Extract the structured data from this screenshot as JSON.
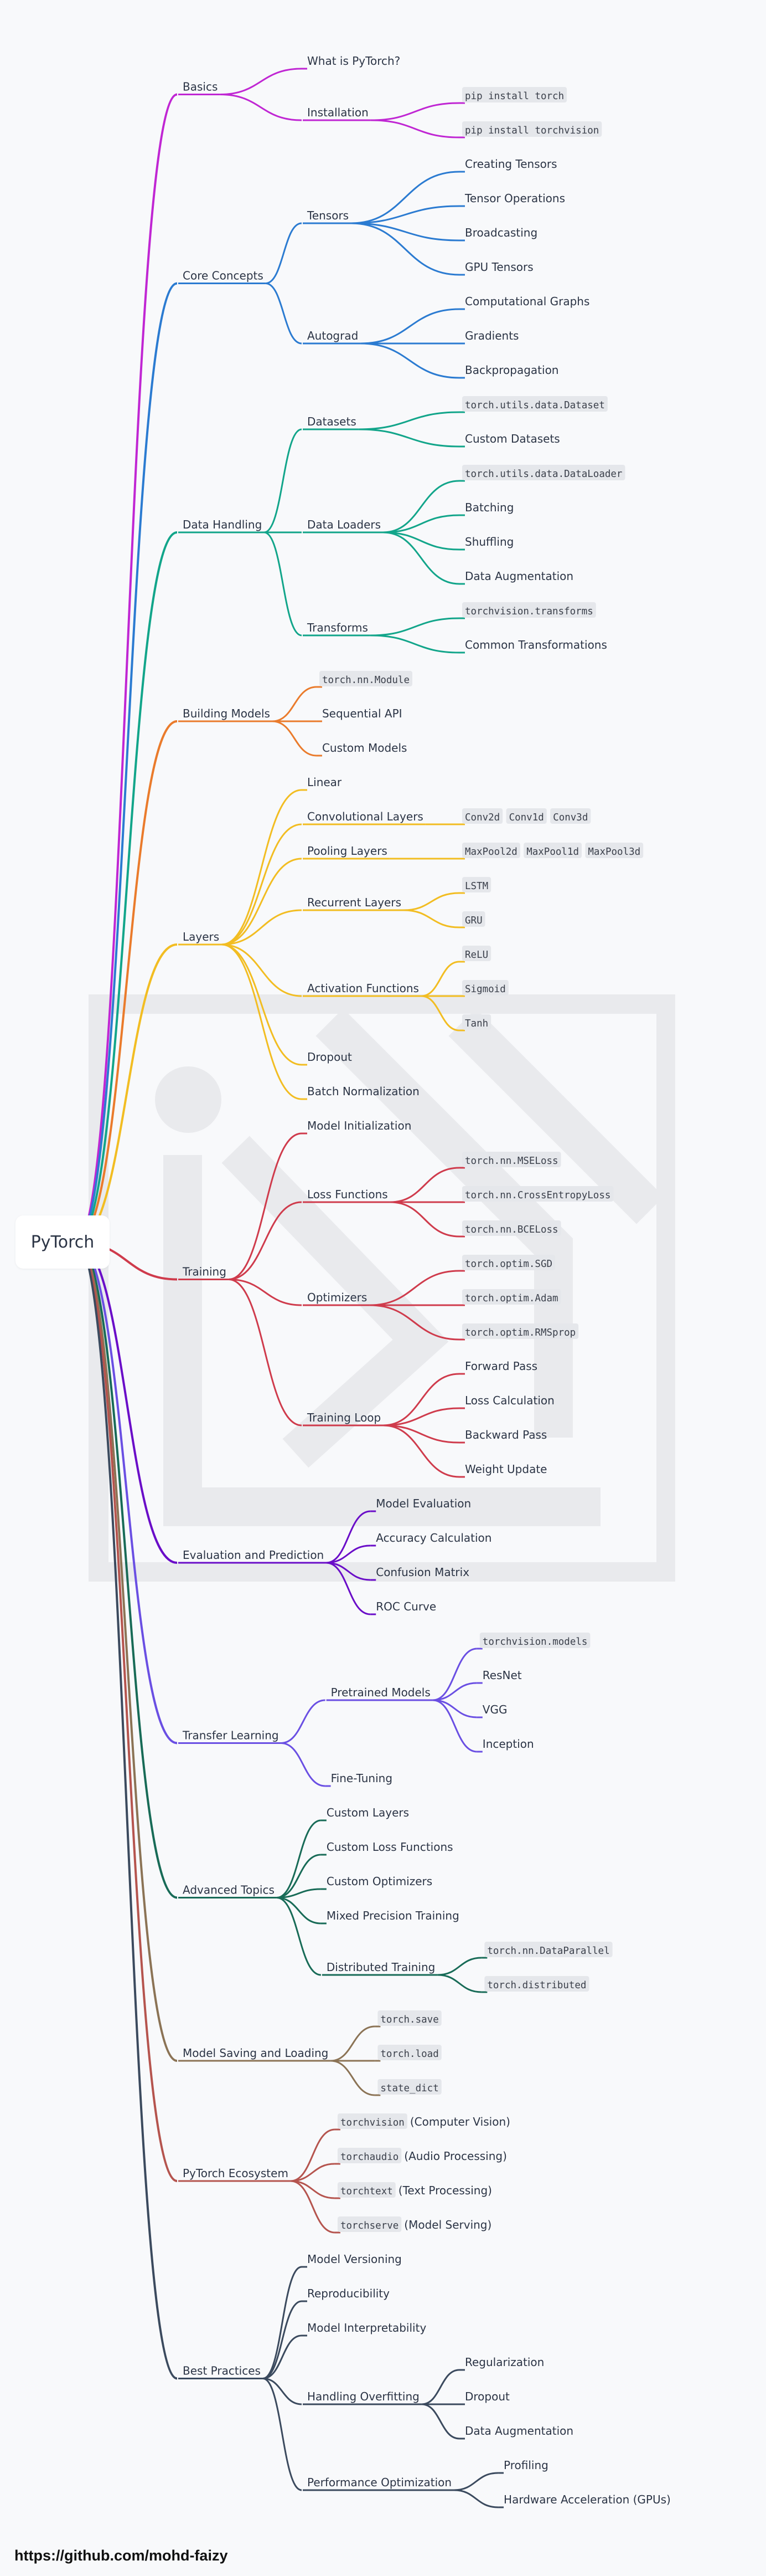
{
  "root": "PyTorch",
  "footer": "https://github.com/mohd-faizy",
  "colors": {
    "basics": "#c026d3",
    "core": "#2b7bd1",
    "data": "#12a58a",
    "building": "#ea7b2c",
    "layers": "#f2bd22",
    "training": "#cf3b4c",
    "eval": "#6a0dc8",
    "transfer": "#6a4fe3",
    "advanced": "#186b57",
    "saving": "#8b7355",
    "ecosystem": "#b5544e",
    "best": "#3b4a5e",
    "watermark": "#e9eaed"
  },
  "tree": [
    {
      "label": "Basics",
      "color": "basics",
      "children": [
        {
          "label": "What is PyTorch?"
        },
        {
          "label": "Installation",
          "children": [
            {
              "label": "pip install torch",
              "code": true
            },
            {
              "label": "pip install torchvision",
              "code": true
            }
          ]
        }
      ]
    },
    {
      "label": "Core Concepts",
      "color": "core",
      "children": [
        {
          "label": "Tensors",
          "children": [
            {
              "label": "Creating Tensors"
            },
            {
              "label": "Tensor Operations"
            },
            {
              "label": "Broadcasting"
            },
            {
              "label": "GPU Tensors"
            }
          ]
        },
        {
          "label": "Autograd",
          "children": [
            {
              "label": "Computational Graphs"
            },
            {
              "label": "Gradients"
            },
            {
              "label": "Backpropagation"
            }
          ]
        }
      ]
    },
    {
      "label": "Data Handling",
      "color": "data",
      "children": [
        {
          "label": "Datasets",
          "children": [
            {
              "label": "torch.utils.data.Dataset",
              "code": true
            },
            {
              "label": "Custom Datasets"
            }
          ]
        },
        {
          "label": "Data Loaders",
          "children": [
            {
              "label": "torch.utils.data.DataLoader",
              "code": true
            },
            {
              "label": "Batching"
            },
            {
              "label": "Shuffling"
            },
            {
              "label": "Data Augmentation"
            }
          ]
        },
        {
          "label": "Transforms",
          "children": [
            {
              "label": "torchvision.transforms",
              "code": true
            },
            {
              "label": "Common Transformations"
            }
          ]
        }
      ]
    },
    {
      "label": "Building Models",
      "color": "building",
      "children": [
        {
          "label": "torch.nn.Module",
          "code": true
        },
        {
          "label": "Sequential API"
        },
        {
          "label": "Custom Models"
        }
      ]
    },
    {
      "label": "Layers",
      "color": "layers",
      "children": [
        {
          "label": "Linear"
        },
        {
          "label": "Convolutional Layers",
          "children": [
            {
              "parts": [
                {
                  "t": "Conv2d",
                  "c": true
                },
                {
                  "t": " , "
                },
                {
                  "t": "Conv1d",
                  "c": true
                },
                {
                  "t": " , "
                },
                {
                  "t": "Conv3d",
                  "c": true
                }
              ]
            }
          ]
        },
        {
          "label": "Pooling Layers",
          "children": [
            {
              "parts": [
                {
                  "t": "MaxPool2d",
                  "c": true
                },
                {
                  "t": " , "
                },
                {
                  "t": "MaxPool1d",
                  "c": true
                },
                {
                  "t": " , "
                },
                {
                  "t": "MaxPool3d",
                  "c": true
                }
              ]
            }
          ]
        },
        {
          "label": "Recurrent Layers",
          "children": [
            {
              "label": "LSTM",
              "code": true
            },
            {
              "label": "GRU",
              "code": true
            }
          ]
        },
        {
          "label": "Activation Functions",
          "children": [
            {
              "label": "ReLU",
              "code": true
            },
            {
              "label": "Sigmoid",
              "code": true
            },
            {
              "label": "Tanh",
              "code": true
            }
          ]
        },
        {
          "label": "Dropout"
        },
        {
          "label": "Batch Normalization"
        }
      ]
    },
    {
      "label": "Training",
      "color": "training",
      "children": [
        {
          "label": "Model Initialization"
        },
        {
          "label": "Loss Functions",
          "children": [
            {
              "label": "torch.nn.MSELoss",
              "code": true
            },
            {
              "label": "torch.nn.CrossEntropyLoss",
              "code": true
            },
            {
              "label": "torch.nn.BCELoss",
              "code": true
            }
          ]
        },
        {
          "label": "Optimizers",
          "children": [
            {
              "label": "torch.optim.SGD",
              "code": true
            },
            {
              "label": "torch.optim.Adam",
              "code": true
            },
            {
              "label": "torch.optim.RMSprop",
              "code": true
            }
          ]
        },
        {
          "label": "Training Loop",
          "children": [
            {
              "label": "Forward Pass"
            },
            {
              "label": "Loss Calculation"
            },
            {
              "label": "Backward Pass"
            },
            {
              "label": "Weight Update"
            }
          ]
        }
      ]
    },
    {
      "label": "Evaluation and Prediction",
      "color": "eval",
      "children": [
        {
          "label": "Model Evaluation"
        },
        {
          "label": "Accuracy Calculation"
        },
        {
          "label": "Confusion Matrix"
        },
        {
          "label": "ROC Curve"
        }
      ]
    },
    {
      "label": "Transfer Learning",
      "color": "transfer",
      "children": [
        {
          "label": "Pretrained Models",
          "children": [
            {
              "label": "torchvision.models",
              "code": true
            },
            {
              "label": "ResNet"
            },
            {
              "label": "VGG"
            },
            {
              "label": "Inception"
            }
          ]
        },
        {
          "label": "Fine-Tuning"
        }
      ]
    },
    {
      "label": "Advanced Topics",
      "color": "advanced",
      "children": [
        {
          "label": "Custom Layers"
        },
        {
          "label": "Custom Loss Functions"
        },
        {
          "label": "Custom Optimizers"
        },
        {
          "label": "Mixed Precision Training"
        },
        {
          "label": "Distributed Training",
          "children": [
            {
              "label": "torch.nn.DataParallel",
              "code": true
            },
            {
              "label": "torch.distributed",
              "code": true
            }
          ]
        }
      ]
    },
    {
      "label": "Model Saving and Loading",
      "color": "saving",
      "children": [
        {
          "label": "torch.save",
          "code": true
        },
        {
          "label": "torch.load",
          "code": true
        },
        {
          "label": "state_dict",
          "code": true
        }
      ]
    },
    {
      "label": "PyTorch Ecosystem",
      "color": "ecosystem",
      "children": [
        {
          "parts": [
            {
              "t": "torchvision",
              "c": true
            },
            {
              "t": " (Computer Vision)"
            }
          ]
        },
        {
          "parts": [
            {
              "t": "torchaudio",
              "c": true
            },
            {
              "t": " (Audio Processing)"
            }
          ]
        },
        {
          "parts": [
            {
              "t": "torchtext",
              "c": true
            },
            {
              "t": " (Text Processing)"
            }
          ]
        },
        {
          "parts": [
            {
              "t": "torchserve",
              "c": true
            },
            {
              "t": " (Model Serving)"
            }
          ]
        }
      ]
    },
    {
      "label": "Best Practices",
      "color": "best",
      "children": [
        {
          "label": "Model Versioning"
        },
        {
          "label": "Reproducibility"
        },
        {
          "label": "Model Interpretability"
        },
        {
          "label": "Handling Overfitting",
          "children": [
            {
              "label": "Regularization"
            },
            {
              "label": "Dropout"
            },
            {
              "label": "Data Augmentation"
            }
          ]
        },
        {
          "label": "Performance Optimization",
          "children": [
            {
              "label": "Profiling"
            },
            {
              "label": "Hardware Acceleration (GPUs)"
            }
          ]
        }
      ]
    }
  ]
}
